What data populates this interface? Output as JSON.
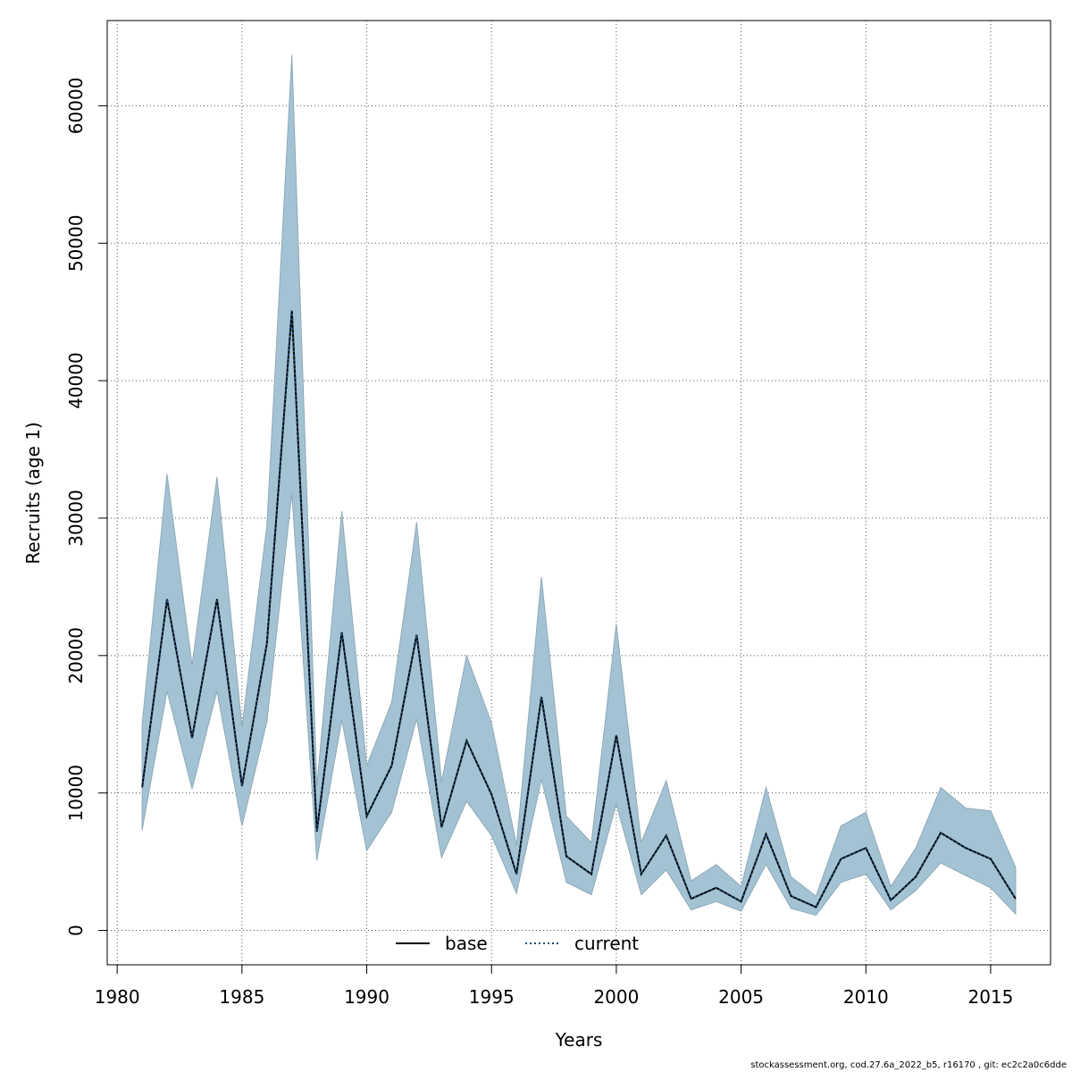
{
  "chart_data": {
    "type": "line",
    "xlabel": "Years",
    "ylabel": "Recruits (age 1)",
    "xlim": [
      1979.6,
      2017.4
    ],
    "ylim": [
      -2500,
      66200
    ],
    "x_ticks": [
      1980,
      1985,
      1990,
      1995,
      2000,
      2005,
      2010,
      2015
    ],
    "y_ticks": [
      0,
      10000,
      20000,
      30000,
      40000,
      50000,
      60000
    ],
    "x_tick_labels": [
      "1980",
      "1985",
      "1990",
      "1995",
      "2000",
      "2005",
      "2010",
      "2015"
    ],
    "y_tick_labels": [
      "0",
      "10000",
      "20000",
      "30000",
      "40000",
      "50000",
      "60000"
    ],
    "grid": true,
    "legend": {
      "position": "bottom",
      "entries": [
        "base",
        "current"
      ]
    },
    "x": [
      1981,
      1982,
      1983,
      1984,
      1985,
      1986,
      1987,
      1988,
      1989,
      1990,
      1991,
      1992,
      1993,
      1994,
      1995,
      1996,
      1997,
      1998,
      1999,
      2000,
      2001,
      2002,
      2003,
      2004,
      2005,
      2006,
      2007,
      2008,
      2009,
      2010,
      2011,
      2012,
      2013,
      2014,
      2015,
      2016
    ],
    "band": {
      "color": "#a3c3d4",
      "lower": [
        7300,
        17400,
        10300,
        17400,
        7600,
        15200,
        31800,
        5100,
        15300,
        5800,
        8600,
        15400,
        5300,
        9400,
        6900,
        2700,
        11000,
        3500,
        2600,
        9200,
        2600,
        4400,
        1500,
        2100,
        1400,
        4800,
        1600,
        1100,
        3500,
        4100,
        1500,
        2900,
        4900,
        4000,
        3100,
        1200
      ],
      "upper": [
        15000,
        33200,
        19300,
        33000,
        14800,
        29500,
        63700,
        10500,
        30500,
        12000,
        16600,
        29700,
        10800,
        20000,
        15100,
        6200,
        25700,
        8300,
        6400,
        22300,
        6400,
        10900,
        3600,
        4800,
        3200,
        10400,
        3900,
        2500,
        7600,
        8600,
        3200,
        6000,
        10400,
        8900,
        8700,
        4600
      ]
    },
    "series": [
      {
        "name": "base",
        "line_style": "solid",
        "color": "#000000",
        "values": [
          10400,
          24100,
          14000,
          24100,
          10500,
          20900,
          45100,
          7200,
          21700,
          8300,
          12000,
          21500,
          7500,
          13800,
          9900,
          4100,
          17000,
          5400,
          4100,
          14200,
          4100,
          6900,
          2300,
          3100,
          2100,
          7000,
          2500,
          1700,
          5200,
          6000,
          2200,
          3900,
          7100,
          6000,
          5200,
          2300
        ]
      },
      {
        "name": "current",
        "line_style": "dotted",
        "color": "#1f4e79",
        "values": [
          10400,
          24100,
          14000,
          24100,
          10500,
          20900,
          45100,
          7200,
          21700,
          8300,
          12000,
          21500,
          7500,
          13800,
          9900,
          4100,
          17000,
          5400,
          4100,
          14200,
          4100,
          6900,
          2300,
          3100,
          2100,
          7000,
          2500,
          1700,
          5200,
          6000,
          2200,
          3900,
          7100,
          6000,
          5200,
          2300
        ]
      }
    ]
  },
  "footer": "stockassessment.org, cod.27.6a_2022_b5, r16170 , git: ec2c2a0c6dde"
}
